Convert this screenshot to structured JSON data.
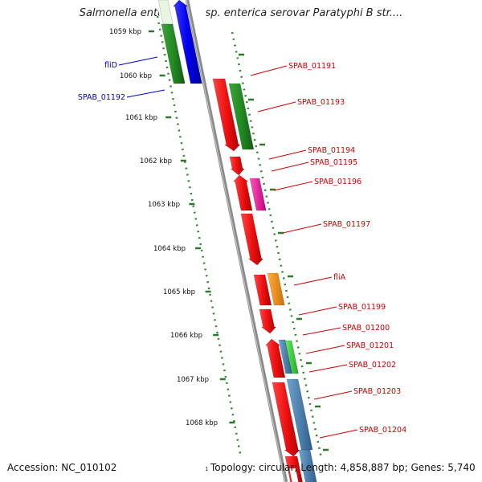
{
  "title": "Salmonella enterica subsp. enterica serovar Paratyphi B str....",
  "footer": {
    "accession": "Accession: NC_010102",
    "topology": "Topology: circular; Length: 4,858,887 bp; Genes: 5,740",
    "start_marker": "1"
  },
  "ticks": [
    "1059 kbp",
    "1060 kbp",
    "1061 kbp",
    "1062 kbp",
    "1063 kbp",
    "1064 kbp",
    "1065 kbp",
    "1066 kbp",
    "1067 kbp",
    "1068 kbp"
  ],
  "left_labels": [
    {
      "text": "fliD",
      "color": "#0000cc"
    },
    {
      "text": "SPAB_01192",
      "color": "#0000cc"
    }
  ],
  "right_labels": [
    {
      "text": "SPAB_01191",
      "color": "#cc0000"
    },
    {
      "text": "SPAB_01193",
      "color": "#cc0000"
    },
    {
      "text": "SPAB_01194",
      "color": "#cc0000"
    },
    {
      "text": "SPAB_01195",
      "color": "#cc0000"
    },
    {
      "text": "SPAB_01196",
      "color": "#cc0000"
    },
    {
      "text": "SPAB_01197",
      "color": "#cc0000"
    },
    {
      "text": "fliA",
      "color": "#cc0000"
    },
    {
      "text": "SPAB_01199",
      "color": "#cc0000"
    },
    {
      "text": "SPAB_01200",
      "color": "#cc0000"
    },
    {
      "text": "SPAB_01201",
      "color": "#cc0000"
    },
    {
      "text": "SPAB_01202",
      "color": "#cc0000"
    },
    {
      "text": "SPAB_01203",
      "color": "#cc0000"
    },
    {
      "text": "SPAB_01204",
      "color": "#cc0000"
    }
  ],
  "colors": {
    "backbone": "#8a8a8a",
    "red_gene": "#ee1111",
    "green_gene": "#228b22",
    "blue_gene": "#0000ee",
    "magenta_gene": "#ee1199",
    "orange_gene": "#ff8c00",
    "steel_gene": "#4682b4",
    "light_green_gene": "#33cc33",
    "tick_green": "#2a7a2a"
  }
}
